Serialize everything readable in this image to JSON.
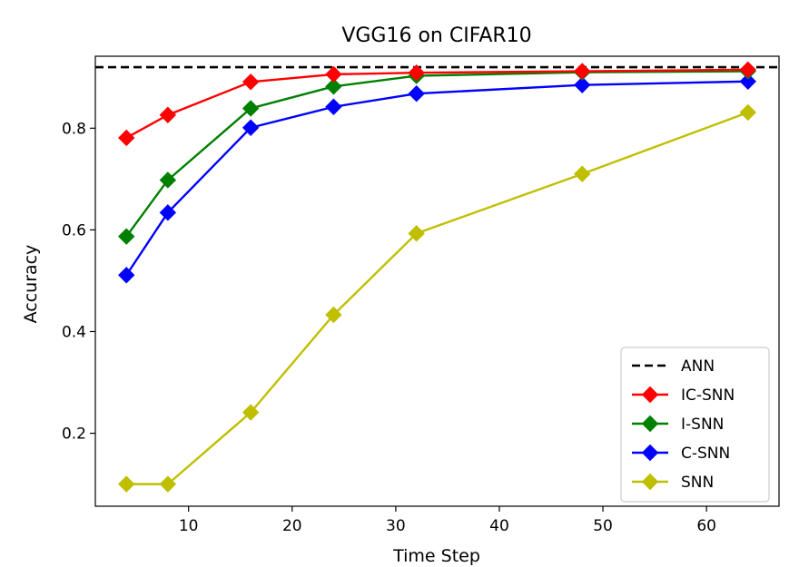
{
  "chart_data": {
    "type": "line",
    "title": "VGG16 on CIFAR10",
    "xlabel": "Time Step",
    "ylabel": "Accuracy",
    "xlim": [
      1.0,
      67.0
    ],
    "ylim": [
      0.0565,
      0.9415
    ],
    "xticks": [
      10,
      20,
      30,
      40,
      50,
      60
    ],
    "yticks": [
      0.2,
      0.4,
      0.6,
      0.8
    ],
    "grid": false,
    "legend_position": "bottom-right",
    "reference_line": {
      "name": "ANN",
      "y": 0.92,
      "color": "#000000",
      "style": "dashed"
    },
    "x": [
      4,
      8,
      16,
      24,
      32,
      48,
      64
    ],
    "series": [
      {
        "name": "IC-SNN",
        "color": "#ff0000",
        "values": [
          0.781,
          0.826,
          0.891,
          0.906,
          0.909,
          0.912,
          0.915
        ]
      },
      {
        "name": "I-SNN",
        "color": "#008000",
        "values": [
          0.587,
          0.698,
          0.839,
          0.882,
          0.903,
          0.91,
          0.912
        ]
      },
      {
        "name": "C-SNN",
        "color": "#0000ff",
        "values": [
          0.511,
          0.634,
          0.801,
          0.842,
          0.868,
          0.885,
          0.892
        ]
      },
      {
        "name": "SNN",
        "color": "#bfbf00",
        "values": [
          0.1,
          0.1,
          0.241,
          0.433,
          0.593,
          0.71,
          0.831
        ]
      }
    ]
  }
}
